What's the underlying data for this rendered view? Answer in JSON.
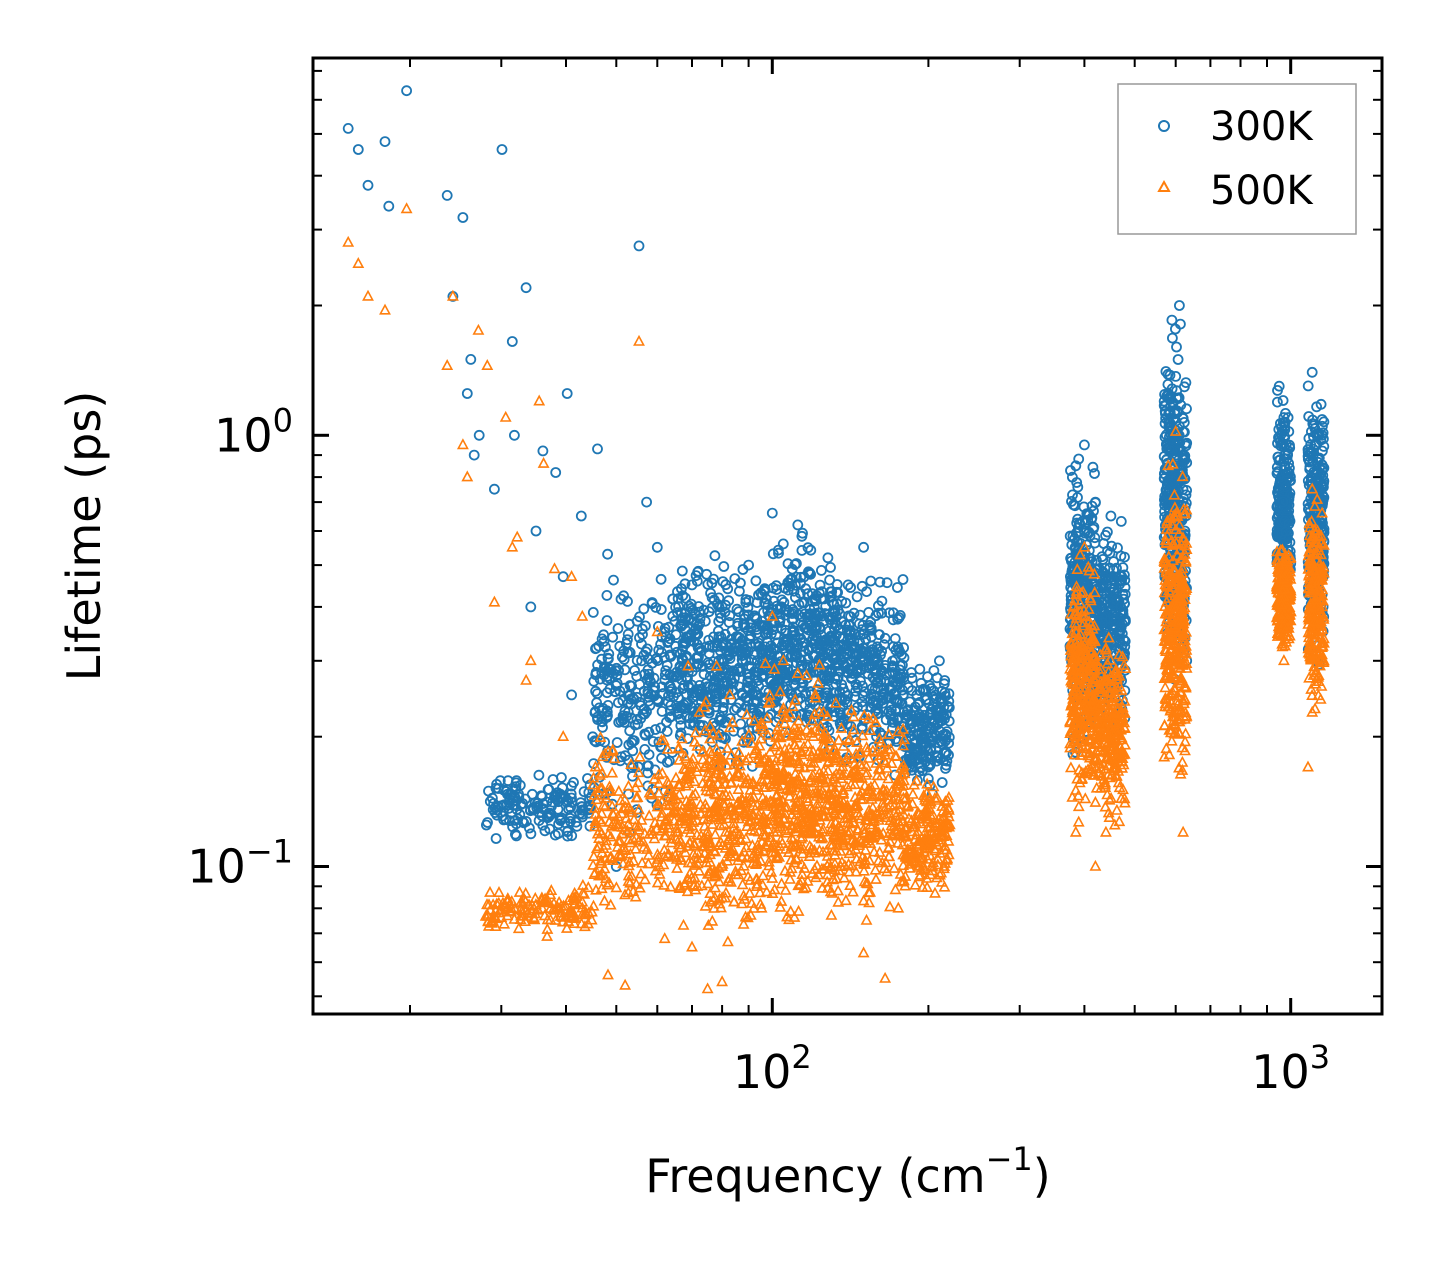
{
  "chart_data": {
    "type": "scatter",
    "title": "",
    "xlabel": "Frequency (cm",
    "xlabel_sup": "−1",
    "xlabel_end": ")",
    "ylabel": "Lifetime (ps)",
    "xscale": "log",
    "yscale": "log",
    "xlim": [
      13,
      1500
    ],
    "ylim": [
      0.0455,
      7.5
    ],
    "x_ticks": [
      {
        "value": 100,
        "base": "10",
        "exp": "2"
      },
      {
        "value": 1000,
        "base": "10",
        "exp": "3"
      }
    ],
    "y_ticks": [
      {
        "value": 0.1,
        "base": "10",
        "exp": "−1"
      },
      {
        "value": 1,
        "base": "10",
        "exp": "0"
      }
    ],
    "legend_position": "top-right",
    "series": [
      {
        "name": "300K",
        "marker": "circle-open",
        "color": "#1f77b4",
        "points": [
          [
            15.2,
            5.15
          ],
          [
            15.9,
            4.6
          ],
          [
            16.6,
            3.8
          ],
          [
            17.9,
            4.8
          ],
          [
            18.2,
            3.4
          ],
          [
            19.7,
            6.3
          ],
          [
            23.6,
            3.6
          ],
          [
            25.3,
            3.2
          ],
          [
            25.8,
            1.25
          ],
          [
            24.2,
            2.1
          ],
          [
            26.2,
            1.5
          ],
          [
            26.6,
            0.9
          ],
          [
            27.2,
            1.0
          ],
          [
            29.1,
            0.75
          ],
          [
            30.1,
            4.6
          ],
          [
            31.5,
            1.65
          ],
          [
            31.8,
            1.0
          ],
          [
            33.5,
            2.2
          ],
          [
            34.2,
            0.4
          ],
          [
            35.0,
            0.6
          ],
          [
            36.1,
            0.92
          ],
          [
            38.2,
            0.82
          ],
          [
            39.5,
            0.47
          ],
          [
            40.2,
            1.25
          ],
          [
            41.0,
            0.25
          ],
          [
            42.8,
            0.65
          ],
          [
            45.6,
            0.32
          ],
          [
            46.0,
            0.93
          ],
          [
            48.1,
            0.53
          ],
          [
            55.3,
            2.75
          ],
          [
            57.2,
            0.7
          ],
          [
            60.0,
            0.55
          ],
          [
            29.5,
            0.135
          ],
          [
            33.0,
            0.14
          ],
          [
            38.0,
            0.145
          ],
          [
            44.0,
            0.16
          ],
          [
            50.0,
            0.1
          ],
          [
            53.0,
            0.12
          ],
          [
            62.0,
            0.35
          ],
          [
            70.0,
            0.45
          ],
          [
            80.0,
            0.4
          ],
          [
            90.0,
            0.5
          ],
          [
            100.0,
            0.66
          ],
          [
            105.0,
            0.56
          ],
          [
            112.0,
            0.62
          ],
          [
            118.0,
            0.48
          ],
          [
            128.0,
            0.52
          ],
          [
            140.0,
            0.45
          ],
          [
            150.0,
            0.55
          ],
          [
            160.0,
            0.3
          ],
          [
            175.0,
            0.22
          ],
          [
            190.0,
            0.25
          ],
          [
            210.0,
            0.3
          ],
          [
            215.0,
            0.27
          ],
          [
            385.0,
            0.85
          ],
          [
            400.0,
            0.95
          ],
          [
            420.0,
            0.7
          ],
          [
            450.0,
            0.65
          ],
          [
            470.0,
            0.4
          ],
          [
            570.0,
            1.2
          ],
          [
            590.0,
            1.85
          ],
          [
            610.0,
            2.0
          ],
          [
            630.0,
            0.3
          ],
          [
            950.0,
            1.3
          ],
          [
            970.0,
            1.1
          ],
          [
            1100.0,
            1.4
          ],
          [
            1150.0,
            1.0
          ]
        ],
        "clouds": [
          {
            "x": [
              28,
              45
            ],
            "y": [
              0.11,
              0.17
            ],
            "n": 160
          },
          {
            "x": [
              45,
              65
            ],
            "y": [
              0.12,
              0.55
            ],
            "n": 260
          },
          {
            "x": [
              65,
              95
            ],
            "y": [
              0.14,
              0.58
            ],
            "n": 420
          },
          {
            "x": [
              95,
              135
            ],
            "y": [
              0.16,
              0.65
            ],
            "n": 460
          },
          {
            "x": [
              135,
              180
            ],
            "y": [
              0.15,
              0.52
            ],
            "n": 300
          },
          {
            "x": [
              180,
              220
            ],
            "y": [
              0.14,
              0.32
            ],
            "n": 200
          },
          {
            "x": [
              375,
              420
            ],
            "y": [
              0.15,
              1.0
            ],
            "n": 320
          },
          {
            "x": [
              420,
              480
            ],
            "y": [
              0.18,
              0.72
            ],
            "n": 260
          },
          {
            "x": [
              570,
              630
            ],
            "y": [
              0.22,
              2.1
            ],
            "n": 380
          },
          {
            "x": [
              940,
              1000
            ],
            "y": [
              0.35,
              1.4
            ],
            "n": 220
          },
          {
            "x": [
              1080,
              1160
            ],
            "y": [
              0.28,
              1.45
            ],
            "n": 260
          }
        ]
      },
      {
        "name": "500K",
        "marker": "triangle-open",
        "color": "#ff7f0e",
        "points": [
          [
            15.2,
            2.8
          ],
          [
            15.9,
            2.5
          ],
          [
            16.6,
            2.1
          ],
          [
            17.9,
            1.95
          ],
          [
            19.7,
            3.35
          ],
          [
            23.6,
            1.45
          ],
          [
            24.2,
            2.1
          ],
          [
            25.3,
            0.95
          ],
          [
            25.8,
            0.8
          ],
          [
            27.1,
            1.75
          ],
          [
            28.2,
            1.45
          ],
          [
            29.1,
            0.41
          ],
          [
            30.6,
            1.1
          ],
          [
            31.5,
            0.55
          ],
          [
            32.2,
            0.58
          ],
          [
            33.5,
            0.27
          ],
          [
            34.2,
            0.3
          ],
          [
            35.5,
            1.2
          ],
          [
            36.2,
            0.86
          ],
          [
            38.0,
            0.49
          ],
          [
            39.5,
            0.2
          ],
          [
            41.0,
            0.47
          ],
          [
            43.0,
            0.38
          ],
          [
            45.6,
            0.17
          ],
          [
            48.2,
            0.056
          ],
          [
            52.0,
            0.053
          ],
          [
            55.3,
            1.65
          ],
          [
            60.0,
            0.35
          ],
          [
            62.0,
            0.068
          ],
          [
            70.0,
            0.065
          ],
          [
            75.0,
            0.052
          ],
          [
            80.0,
            0.054
          ],
          [
            100.0,
            0.38
          ],
          [
            105.0,
            0.3
          ],
          [
            112.0,
            0.28
          ],
          [
            120.0,
            0.2
          ],
          [
            130.0,
            0.077
          ],
          [
            150.0,
            0.063
          ],
          [
            165.0,
            0.055
          ],
          [
            175.0,
            0.08
          ],
          [
            215.0,
            0.12
          ],
          [
            385.0,
            0.12
          ],
          [
            400.0,
            0.55
          ],
          [
            420.0,
            0.1
          ],
          [
            440.0,
            0.12
          ],
          [
            460.0,
            0.28
          ],
          [
            580.0,
            0.85
          ],
          [
            600.0,
            1.02
          ],
          [
            620.0,
            0.12
          ],
          [
            950.0,
            0.5
          ],
          [
            970.0,
            0.3
          ],
          [
            1080.0,
            0.17
          ],
          [
            1100.0,
            0.75
          ],
          [
            1150.0,
            0.4
          ]
        ],
        "clouds": [
          {
            "x": [
              28,
              45
            ],
            "y": [
              0.068,
              0.092
            ],
            "n": 140
          },
          {
            "x": [
              45,
              65
            ],
            "y": [
              0.068,
              0.22
            ],
            "n": 220
          },
          {
            "x": [
              65,
              95
            ],
            "y": [
              0.058,
              0.3
            ],
            "n": 420
          },
          {
            "x": [
              95,
              135
            ],
            "y": [
              0.065,
              0.32
            ],
            "n": 500
          },
          {
            "x": [
              135,
              180
            ],
            "y": [
              0.07,
              0.26
            ],
            "n": 300
          },
          {
            "x": [
              180,
              220
            ],
            "y": [
              0.08,
              0.17
            ],
            "n": 200
          },
          {
            "x": [
              375,
              420
            ],
            "y": [
              0.12,
              0.58
            ],
            "n": 300
          },
          {
            "x": [
              420,
              480
            ],
            "y": [
              0.11,
              0.4
            ],
            "n": 240
          },
          {
            "x": [
              570,
              630
            ],
            "y": [
              0.13,
              0.95
            ],
            "n": 340
          },
          {
            "x": [
              940,
              1000
            ],
            "y": [
              0.3,
              0.6
            ],
            "n": 200
          },
          {
            "x": [
              1080,
              1160
            ],
            "y": [
              0.2,
              0.8
            ],
            "n": 240
          }
        ]
      }
    ]
  }
}
